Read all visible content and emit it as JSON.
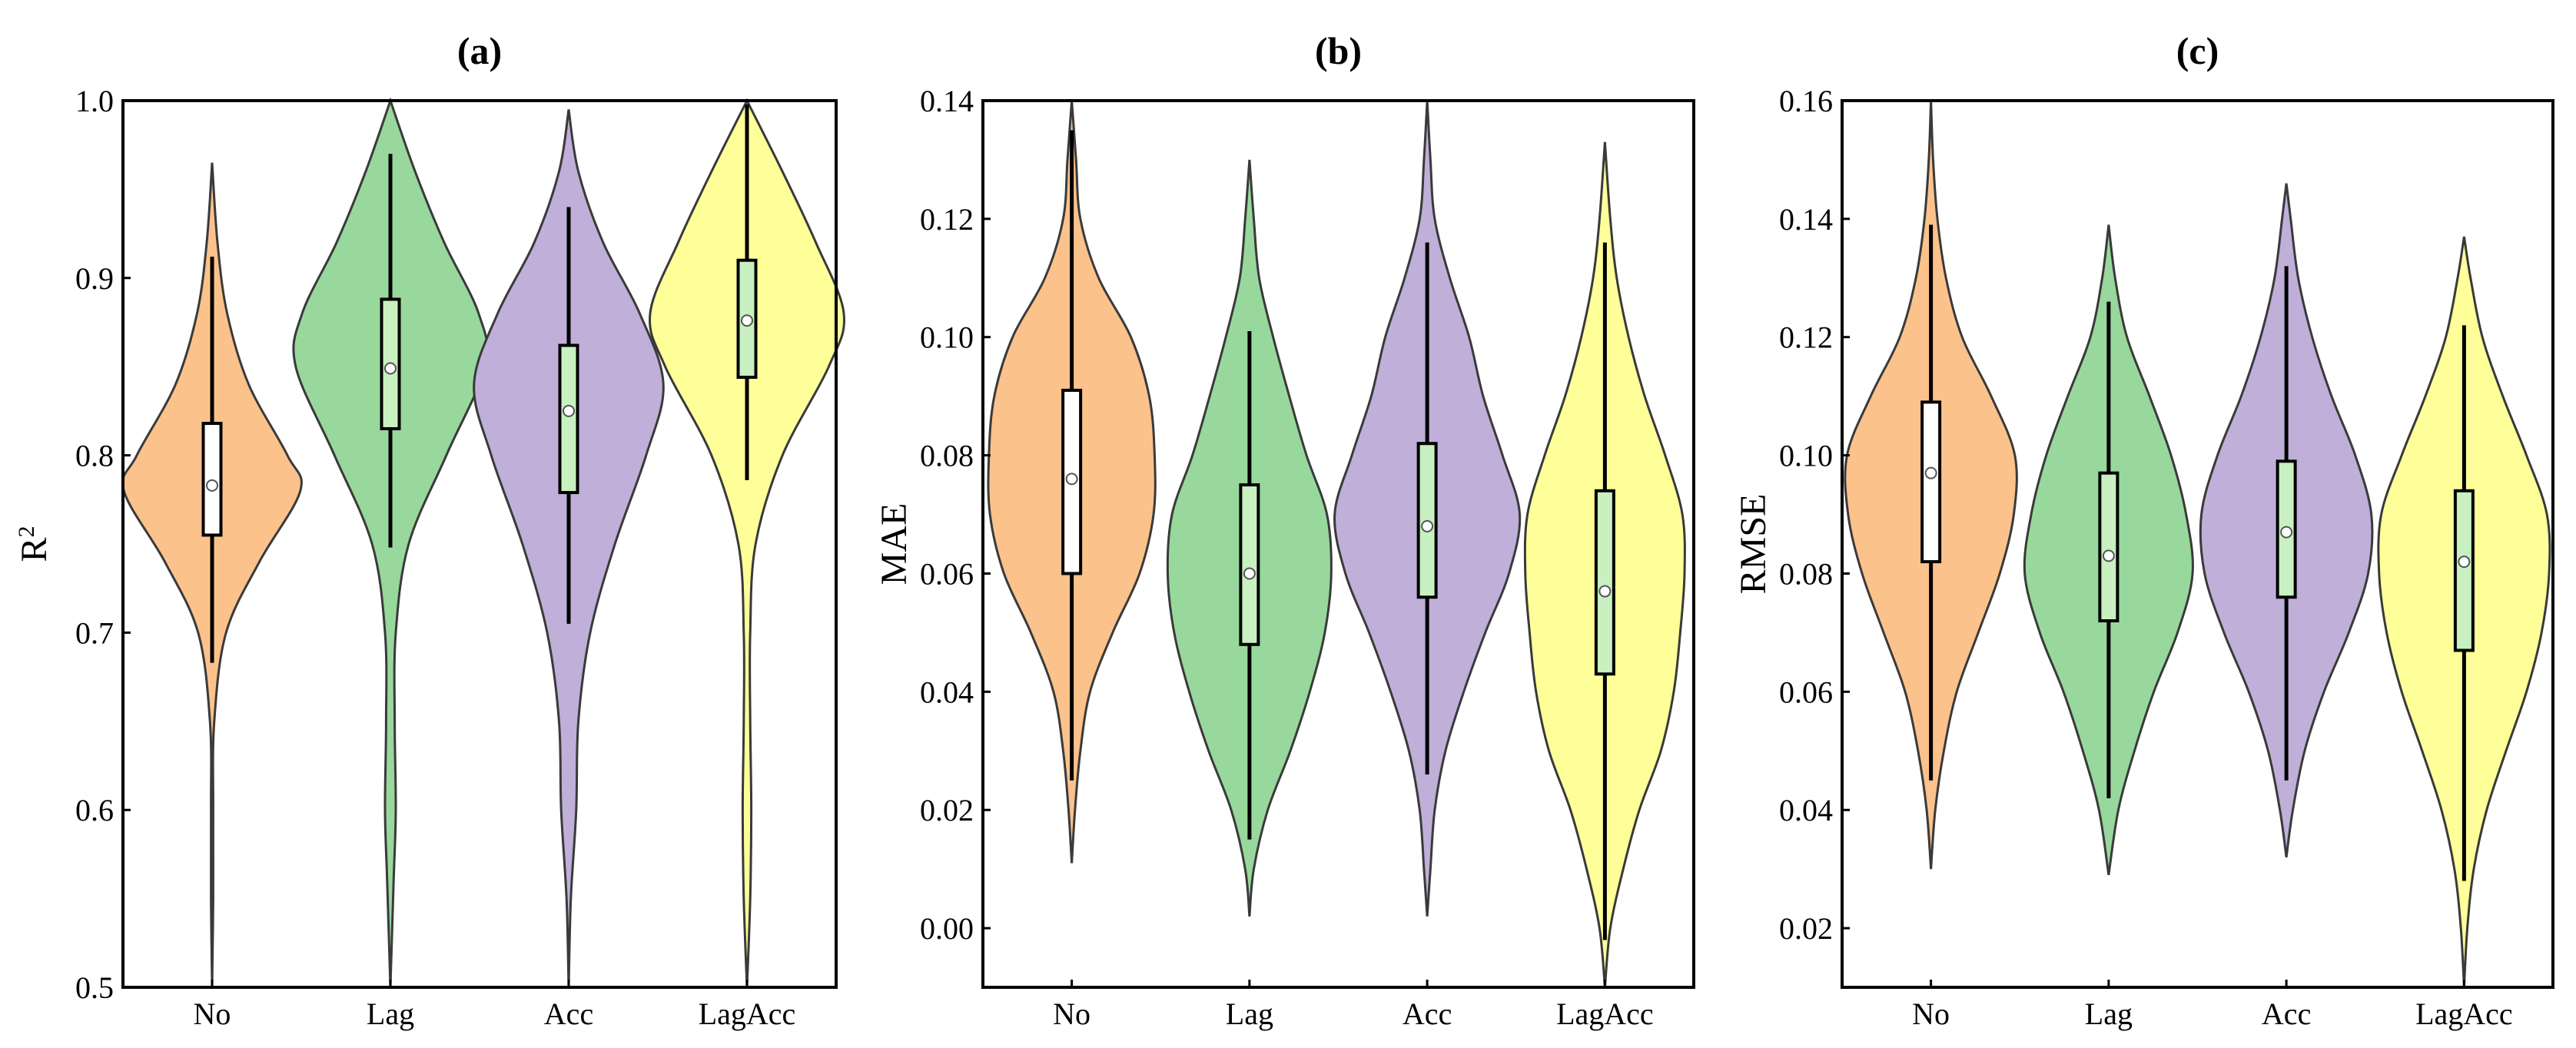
{
  "colors": {
    "No": "#FCC28C",
    "Lag": "#98D89C",
    "Acc": "#BFAFD9",
    "LagAcc": "#FFFF99",
    "outline": "#3a3a3a"
  },
  "chart_data": [
    {
      "type": "violin",
      "title": "(a)",
      "xlabel": "",
      "ylabel": "R",
      "ylabel_sup": "2",
      "ylim": [
        0.5,
        1.0
      ],
      "yticks": [
        0.5,
        0.6,
        0.7,
        0.8,
        0.9,
        1.0
      ],
      "ytick_labels": [
        "0.5",
        "0.6",
        "0.7",
        "0.8",
        "0.9",
        "1.0"
      ],
      "categories": [
        "No",
        "Lag",
        "Acc",
        "LagAcc"
      ],
      "series": [
        {
          "min": 0.5,
          "max": 0.965,
          "q1": 0.755,
          "median": 0.783,
          "q3": 0.818,
          "whisker_low": 0.683,
          "whisker_high": 0.912,
          "profile": [
            [
              0.5,
              0.0
            ],
            [
              0.55,
              0.01
            ],
            [
              0.6,
              0.01
            ],
            [
              0.65,
              0.02
            ],
            [
              0.7,
              0.13
            ],
            [
              0.74,
              0.44
            ],
            [
              0.78,
              0.82
            ],
            [
              0.8,
              0.7
            ],
            [
              0.84,
              0.34
            ],
            [
              0.88,
              0.14
            ],
            [
              0.92,
              0.05
            ],
            [
              0.965,
              0.0
            ]
          ]
        },
        {
          "min": 0.5,
          "max": 1.0,
          "q1": 0.815,
          "median": 0.849,
          "q3": 0.888,
          "whisker_low": 0.748,
          "whisker_high": 0.97,
          "profile": [
            [
              0.5,
              0.0
            ],
            [
              0.56,
              0.03
            ],
            [
              0.6,
              0.05
            ],
            [
              0.65,
              0.04
            ],
            [
              0.7,
              0.05
            ],
            [
              0.75,
              0.17
            ],
            [
              0.8,
              0.52
            ],
            [
              0.85,
              0.88
            ],
            [
              0.88,
              0.82
            ],
            [
              0.92,
              0.5
            ],
            [
              0.96,
              0.23
            ],
            [
              1.0,
              0.0
            ]
          ]
        },
        {
          "min": 0.5,
          "max": 0.995,
          "q1": 0.779,
          "median": 0.825,
          "q3": 0.862,
          "whisker_low": 0.705,
          "whisker_high": 0.94,
          "profile": [
            [
              0.5,
              0.0
            ],
            [
              0.55,
              0.02
            ],
            [
              0.6,
              0.07
            ],
            [
              0.65,
              0.09
            ],
            [
              0.7,
              0.2
            ],
            [
              0.75,
              0.43
            ],
            [
              0.8,
              0.72
            ],
            [
              0.84,
              0.88
            ],
            [
              0.88,
              0.66
            ],
            [
              0.92,
              0.32
            ],
            [
              0.96,
              0.09
            ],
            [
              0.995,
              0.0
            ]
          ]
        },
        {
          "min": 0.5,
          "max": 1.0,
          "q1": 0.844,
          "median": 0.876,
          "q3": 0.91,
          "whisker_low": 0.786,
          "whisker_high": 0.998,
          "profile": [
            [
              0.5,
              0.0
            ],
            [
              0.55,
              0.03
            ],
            [
              0.6,
              0.04
            ],
            [
              0.65,
              0.03
            ],
            [
              0.7,
              0.03
            ],
            [
              0.75,
              0.08
            ],
            [
              0.8,
              0.33
            ],
            [
              0.85,
              0.76
            ],
            [
              0.88,
              0.9
            ],
            [
              0.92,
              0.64
            ],
            [
              0.96,
              0.33
            ],
            [
              1.0,
              0.0
            ]
          ]
        }
      ]
    },
    {
      "type": "violin",
      "title": "(b)",
      "xlabel": "",
      "ylabel": "MAE",
      "ylabel_sup": "",
      "ylim": [
        -0.01,
        0.14
      ],
      "yticks": [
        0.0,
        0.02,
        0.04,
        0.06,
        0.08,
        0.1,
        0.12,
        0.14
      ],
      "ytick_labels": [
        "0.00",
        "0.02",
        "0.04",
        "0.06",
        "0.08",
        "0.10",
        "0.12",
        "0.14"
      ],
      "categories": [
        "No",
        "Lag",
        "Acc",
        "LagAcc"
      ],
      "series": [
        {
          "min": 0.011,
          "max": 0.14,
          "q1": 0.06,
          "median": 0.076,
          "q3": 0.091,
          "whisker_low": 0.025,
          "whisker_high": 0.135,
          "profile": [
            [
              0.011,
              0.0
            ],
            [
              0.02,
              0.03
            ],
            [
              0.03,
              0.08
            ],
            [
              0.04,
              0.17
            ],
            [
              0.05,
              0.38
            ],
            [
              0.06,
              0.63
            ],
            [
              0.07,
              0.76
            ],
            [
              0.08,
              0.77
            ],
            [
              0.09,
              0.72
            ],
            [
              0.1,
              0.55
            ],
            [
              0.11,
              0.25
            ],
            [
              0.12,
              0.08
            ],
            [
              0.13,
              0.04
            ],
            [
              0.14,
              0.0
            ]
          ]
        },
        {
          "min": 0.002,
          "max": 0.13,
          "q1": 0.048,
          "median": 0.06,
          "q3": 0.075,
          "whisker_low": 0.015,
          "whisker_high": 0.101,
          "profile": [
            [
              0.002,
              0.0
            ],
            [
              0.01,
              0.04
            ],
            [
              0.02,
              0.17
            ],
            [
              0.03,
              0.38
            ],
            [
              0.04,
              0.56
            ],
            [
              0.05,
              0.7
            ],
            [
              0.06,
              0.76
            ],
            [
              0.07,
              0.72
            ],
            [
              0.08,
              0.53
            ],
            [
              0.09,
              0.37
            ],
            [
              0.1,
              0.22
            ],
            [
              0.11,
              0.09
            ],
            [
              0.12,
              0.04
            ],
            [
              0.13,
              0.0
            ]
          ]
        },
        {
          "min": 0.002,
          "max": 0.14,
          "q1": 0.056,
          "median": 0.068,
          "q3": 0.082,
          "whisker_low": 0.026,
          "whisker_high": 0.116,
          "profile": [
            [
              0.002,
              0.0
            ],
            [
              0.01,
              0.03
            ],
            [
              0.02,
              0.07
            ],
            [
              0.03,
              0.17
            ],
            [
              0.04,
              0.34
            ],
            [
              0.05,
              0.54
            ],
            [
              0.06,
              0.76
            ],
            [
              0.07,
              0.86
            ],
            [
              0.08,
              0.7
            ],
            [
              0.09,
              0.52
            ],
            [
              0.1,
              0.39
            ],
            [
              0.11,
              0.21
            ],
            [
              0.12,
              0.07
            ],
            [
              0.13,
              0.03
            ],
            [
              0.14,
              0.0
            ]
          ]
        },
        {
          "min": -0.01,
          "max": 0.133,
          "q1": 0.043,
          "median": 0.057,
          "q3": 0.074,
          "whisker_low": -0.002,
          "whisker_high": 0.116,
          "profile": [
            [
              -0.01,
              0.0
            ],
            [
              0.0,
              0.05
            ],
            [
              0.01,
              0.17
            ],
            [
              0.02,
              0.32
            ],
            [
              0.03,
              0.52
            ],
            [
              0.04,
              0.64
            ],
            [
              0.05,
              0.7
            ],
            [
              0.06,
              0.74
            ],
            [
              0.07,
              0.72
            ],
            [
              0.08,
              0.56
            ],
            [
              0.09,
              0.37
            ],
            [
              0.1,
              0.22
            ],
            [
              0.11,
              0.11
            ],
            [
              0.12,
              0.05
            ],
            [
              0.133,
              0.0
            ]
          ]
        }
      ]
    },
    {
      "type": "violin",
      "title": "(c)",
      "xlabel": "",
      "ylabel": "RMSE",
      "ylabel_sup": "",
      "ylim": [
        0.01,
        0.16
      ],
      "yticks": [
        0.02,
        0.04,
        0.06,
        0.08,
        0.1,
        0.12,
        0.14,
        0.16
      ],
      "ytick_labels": [
        "0.02",
        "0.04",
        "0.06",
        "0.08",
        "0.10",
        "0.12",
        "0.14",
        "0.16"
      ],
      "categories": [
        "No",
        "Lag",
        "Acc",
        "LagAcc"
      ],
      "series": [
        {
          "min": 0.03,
          "max": 0.16,
          "q1": 0.082,
          "median": 0.097,
          "q3": 0.109,
          "whisker_low": 0.045,
          "whisker_high": 0.139,
          "profile": [
            [
              0.03,
              0.0
            ],
            [
              0.04,
              0.04
            ],
            [
              0.05,
              0.12
            ],
            [
              0.06,
              0.24
            ],
            [
              0.07,
              0.44
            ],
            [
              0.08,
              0.64
            ],
            [
              0.09,
              0.77
            ],
            [
              0.1,
              0.78
            ],
            [
              0.11,
              0.56
            ],
            [
              0.12,
              0.29
            ],
            [
              0.13,
              0.14
            ],
            [
              0.14,
              0.06
            ],
            [
              0.15,
              0.02
            ],
            [
              0.16,
              0.0
            ]
          ]
        },
        {
          "min": 0.029,
          "max": 0.139,
          "q1": 0.072,
          "median": 0.083,
          "q3": 0.097,
          "whisker_low": 0.042,
          "whisker_high": 0.126,
          "profile": [
            [
              0.029,
              0.0
            ],
            [
              0.04,
              0.09
            ],
            [
              0.05,
              0.24
            ],
            [
              0.06,
              0.42
            ],
            [
              0.07,
              0.64
            ],
            [
              0.08,
              0.78
            ],
            [
              0.09,
              0.72
            ],
            [
              0.1,
              0.58
            ],
            [
              0.11,
              0.38
            ],
            [
              0.12,
              0.17
            ],
            [
              0.13,
              0.06
            ],
            [
              0.139,
              0.0
            ]
          ]
        },
        {
          "min": 0.032,
          "max": 0.146,
          "q1": 0.076,
          "median": 0.087,
          "q3": 0.099,
          "whisker_low": 0.045,
          "whisker_high": 0.132,
          "profile": [
            [
              0.032,
              0.0
            ],
            [
              0.04,
              0.06
            ],
            [
              0.05,
              0.17
            ],
            [
              0.06,
              0.35
            ],
            [
              0.07,
              0.58
            ],
            [
              0.08,
              0.76
            ],
            [
              0.09,
              0.79
            ],
            [
              0.1,
              0.64
            ],
            [
              0.11,
              0.42
            ],
            [
              0.12,
              0.24
            ],
            [
              0.13,
              0.11
            ],
            [
              0.14,
              0.04
            ],
            [
              0.146,
              0.0
            ]
          ]
        },
        {
          "min": 0.01,
          "max": 0.137,
          "q1": 0.067,
          "median": 0.082,
          "q3": 0.094,
          "whisker_low": 0.028,
          "whisker_high": 0.122,
          "profile": [
            [
              0.01,
              0.0
            ],
            [
              0.02,
              0.03
            ],
            [
              0.03,
              0.09
            ],
            [
              0.04,
              0.21
            ],
            [
              0.05,
              0.39
            ],
            [
              0.06,
              0.58
            ],
            [
              0.07,
              0.72
            ],
            [
              0.08,
              0.79
            ],
            [
              0.09,
              0.77
            ],
            [
              0.1,
              0.58
            ],
            [
              0.11,
              0.36
            ],
            [
              0.12,
              0.17
            ],
            [
              0.13,
              0.06
            ],
            [
              0.137,
              0.0
            ]
          ]
        }
      ]
    }
  ]
}
